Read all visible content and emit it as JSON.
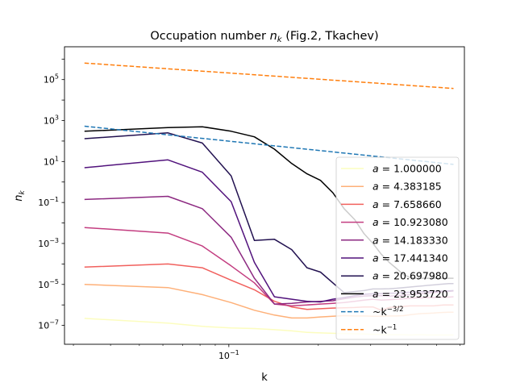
{
  "chart_data": {
    "type": "line",
    "title": "Occupation number n_k (Fig.2, Tkachev)",
    "title_plain": "Occupation number ",
    "title_math_base": "n",
    "title_math_sub": "k",
    "title_suffix": " (Fig.2, Tkachev)",
    "xlabel": "k",
    "ylabel": "n_k",
    "ylabel_base": "n",
    "ylabel_sub": "k",
    "xscale": "log",
    "yscale": "log",
    "xlim": [
      0.028,
      0.62
    ],
    "ylim": [
      1.2e-08,
      4000000.0
    ],
    "x_tick_label": "10^-1",
    "y_tick_exponents": [
      -7,
      -5,
      -3,
      -1,
      1,
      3,
      5
    ],
    "legend_position": "lower-right",
    "grid": false,
    "x": [
      0.0327,
      0.0624,
      0.0814,
      0.1018,
      0.1219,
      0.1424,
      0.1627,
      0.1832,
      0.2034,
      0.2238,
      0.2442,
      0.2647,
      0.2849,
      0.3054,
      0.3257,
      0.3462,
      0.3665,
      0.3868,
      0.4071,
      0.4276,
      0.4479,
      0.4683,
      0.4886,
      0.5089,
      0.5292,
      0.5496,
      0.57
    ],
    "series": [
      {
        "name": "a = 1.000000",
        "label_value": "1.000000",
        "color": "#fcfdbf",
        "style": "solid",
        "values": [
          2.2e-07,
          1.3e-07,
          9e-08,
          7.5e-08,
          7e-08,
          6.2e-08,
          5.4e-08,
          4.6e-08,
          4.3e-08,
          4.1e-08,
          4e-08,
          3.9e-08,
          3.8e-08,
          3.7e-08,
          3.6e-08,
          3.5e-08,
          3.5e-08,
          3.5e-08,
          3.4e-08,
          3.5e-08,
          3.5e-08,
          3.4e-08,
          3.4e-08,
          3.4e-08,
          3.4e-08,
          3.4e-08,
          3.4e-08
        ]
      },
      {
        "name": "a = 4.383185",
        "label_value": "4.383185",
        "color": "#feb078",
        "style": "solid",
        "values": [
          1e-05,
          7e-06,
          3.2e-06,
          1.3e-06,
          5.5e-07,
          3.2e-07,
          2.3e-07,
          2.3e-07,
          2.6e-07,
          2.8e-07,
          3e-07,
          2.9e-07,
          2.9e-07,
          2.8e-07,
          2.8e-07,
          2.9e-07,
          2.9e-07,
          3e-07,
          3.3e-07,
          3.6e-07,
          3.8e-07,
          3.9e-07,
          4e-07,
          4.2e-07,
          4.3e-07,
          4.4e-07,
          4.4e-07
        ]
      },
      {
        "name": "a = 7.658660",
        "label_value": "7.658660",
        "color": "#f1605d",
        "style": "solid",
        "values": [
          7e-05,
          0.0001,
          6.5e-05,
          1.6e-05,
          5.5e-06,
          1.5e-06,
          8e-07,
          6e-07,
          6.5e-07,
          7e-07,
          7.3e-07,
          7.5e-07,
          8e-07,
          8e-07,
          5.5e-07,
          7.5e-07,
          8e-07,
          8.5e-07,
          9e-07,
          9e-07,
          9e-07,
          9e-07,
          9e-07,
          9.5e-07,
          1e-06,
          1e-06,
          1e-06
        ]
      },
      {
        "name": "a = 10.923080",
        "label_value": "10.923080",
        "color": "#c33d80",
        "style": "solid",
        "values": [
          0.006,
          0.0032,
          0.00075,
          8e-05,
          1.2e-05,
          1.1e-06,
          9e-07,
          1e-06,
          1.1e-06,
          1.2e-06,
          1.3e-06,
          1.5e-06,
          1.7e-06,
          1.9e-06,
          1.7e-06,
          1.8e-06,
          1.9e-06,
          2e-06,
          2.1e-06,
          2.2e-06,
          2.2e-06,
          2.3e-06,
          2.3e-06,
          2.4e-06,
          2.4e-06,
          2.4e-06,
          2.5e-06
        ]
      },
      {
        "name": "a = 14.183330",
        "label_value": "14.183330",
        "color": "#8c2981",
        "style": "solid",
        "values": [
          0.14,
          0.2,
          0.05,
          0.002,
          2e-05,
          1.1e-06,
          1.2e-06,
          1.4e-06,
          1.5e-06,
          1.6e-06,
          2e-06,
          2.4e-06,
          2.7e-06,
          2.8e-06,
          2.8e-06,
          2.7e-06,
          2.8e-06,
          3e-06,
          3.2e-06,
          3.4e-06,
          3.6e-06,
          3.8e-06,
          4e-06,
          4.2e-06,
          4.4e-06,
          4.6e-06,
          4.8e-06
        ]
      },
      {
        "name": "a = 17.441340",
        "label_value": "17.441340",
        "color": "#51127c",
        "style": "solid",
        "values": [
          5,
          12,
          3,
          0.11,
          0.00012,
          2.5e-06,
          1.9e-06,
          1.5e-06,
          1.4e-06,
          1.9e-06,
          2.3e-06,
          2.8e-06,
          3.3e-06,
          3.5e-06,
          3.6e-06,
          3.7e-06,
          3.8e-06,
          4e-06,
          4.2e-06,
          4.3e-06,
          4.4e-06,
          4.5e-06,
          4.6e-06,
          4.7e-06,
          4.8e-06,
          4.9e-06,
          5e-06
        ]
      },
      {
        "name": "a = 20.697980",
        "label_value": "20.697980",
        "color": "#221150",
        "style": "solid",
        "values": [
          130,
          250,
          80,
          2,
          0.0014,
          0.0016,
          0.0005,
          6.5e-05,
          4e-05,
          1.2e-05,
          4e-06,
          4.5e-06,
          5e-06,
          6e-06,
          6e-06,
          6.2e-06,
          6.5e-06,
          7e-06,
          7.5e-06,
          8e-06,
          8.5e-06,
          9e-06,
          9.5e-06,
          1e-05,
          1.05e-05,
          1.1e-05,
          1.1e-05
        ]
      },
      {
        "name": "a = 23.953720",
        "label_value": "23.953720",
        "color": "#000000",
        "style": "solid",
        "values": [
          300,
          450,
          500,
          300,
          160,
          40,
          8,
          2.5,
          1.2,
          0.3,
          0.05,
          0.015,
          0.003,
          0.001,
          0.0003,
          0.00012,
          6e-05,
          3e-05,
          2.2e-05,
          2e-05,
          2e-05,
          2e-05,
          2e-05,
          2e-05,
          2e-05,
          2e-05,
          2e-05
        ]
      },
      {
        "name": "~k^-3/2",
        "label_base": "~k",
        "label_exp": "−3/2",
        "color": "#1f77b4",
        "style": "dashed",
        "power_law": {
          "amplitude": 3.13,
          "exponent": -1.5
        }
      },
      {
        "name": "~k^-1",
        "label_base": "~k",
        "label_exp": "−1",
        "color": "#ff7f0e",
        "style": "dashed",
        "power_law": {
          "amplitude": 21000,
          "exponent": -1.0
        }
      }
    ]
  }
}
